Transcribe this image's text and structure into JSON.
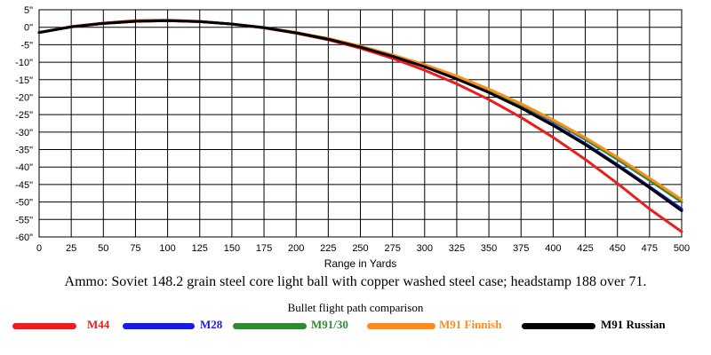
{
  "chart_data": {
    "type": "line",
    "title": "Ammo:  Soviet 148.2 grain steel core light ball with copper washed steel case; headstamp 188 over 71.",
    "subtitle": "Bullet flight path comparison",
    "xlabel": "Range in Yards",
    "ylabel": "",
    "xlim": [
      0,
      500
    ],
    "ylim": [
      -60,
      5
    ],
    "grid": true,
    "legend_position": "bottom",
    "x_ticks": [
      "0",
      "25",
      "50",
      "75",
      "100",
      "125",
      "150",
      "175",
      "200",
      "225",
      "250",
      "275",
      "300",
      "325",
      "350",
      "375",
      "400",
      "425",
      "450",
      "475",
      "500"
    ],
    "y_ticks": [
      "5\"",
      "0\"",
      "-5\"",
      "-10\"",
      "-15\"",
      "-20\"",
      "-25\"",
      "-30\"",
      "-35\"",
      "-40\"",
      "-45\"",
      "-50\"",
      "-55\"",
      "-60\""
    ],
    "x": [
      0,
      25,
      50,
      75,
      100,
      125,
      150,
      175,
      200,
      225,
      250,
      275,
      300,
      325,
      350,
      375,
      400,
      425,
      450,
      475,
      500
    ],
    "series": [
      {
        "name": "M44",
        "color": "#ee1c1c",
        "values": [
          -1.5,
          0.2,
          1.2,
          1.9,
          2.0,
          1.7,
          0.9,
          -0.2,
          -1.7,
          -3.6,
          -6.0,
          -8.9,
          -12.3,
          -16.2,
          -20.7,
          -25.8,
          -31.5,
          -37.8,
          -44.7,
          -52.0,
          -58.5
        ]
      },
      {
        "name": "M28",
        "color": "#1a1ae6",
        "values": [
          -1.5,
          0.1,
          1.1,
          1.7,
          1.9,
          1.6,
          0.9,
          -0.1,
          -1.6,
          -3.4,
          -5.6,
          -8.2,
          -11.2,
          -14.6,
          -18.5,
          -22.9,
          -27.8,
          -33.3,
          -39.3,
          -45.6,
          -52.0
        ]
      },
      {
        "name": "M91/30",
        "color": "#2e8b2e",
        "values": [
          -1.5,
          0.1,
          1.1,
          1.7,
          1.9,
          1.6,
          0.9,
          -0.1,
          -1.5,
          -3.3,
          -5.5,
          -8.0,
          -10.9,
          -14.2,
          -18.0,
          -22.2,
          -26.9,
          -32.1,
          -37.8,
          -43.8,
          -50.0
        ]
      },
      {
        "name": "M91 Finnish",
        "color": "#ff8c1a",
        "values": [
          -1.5,
          0.1,
          1.1,
          1.7,
          1.9,
          1.6,
          0.9,
          -0.1,
          -1.5,
          -3.2,
          -5.4,
          -7.9,
          -10.7,
          -14.0,
          -17.7,
          -21.9,
          -26.5,
          -31.6,
          -37.2,
          -43.2,
          -49.3
        ]
      },
      {
        "name": "M91 Russian",
        "color": "#000000",
        "values": [
          -1.5,
          0.1,
          1.1,
          1.7,
          1.9,
          1.6,
          0.9,
          -0.1,
          -1.6,
          -3.4,
          -5.7,
          -8.3,
          -11.3,
          -14.8,
          -18.7,
          -23.1,
          -28.1,
          -33.6,
          -39.6,
          -45.9,
          -52.5
        ]
      }
    ]
  }
}
